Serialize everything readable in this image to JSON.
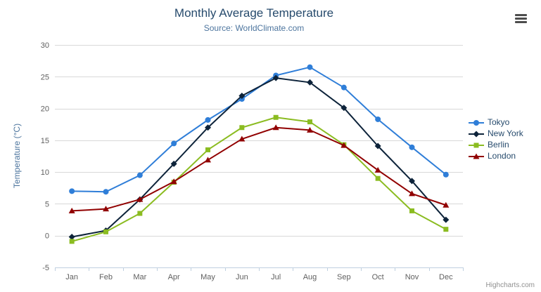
{
  "credit": "Highcharts.com",
  "export_menu": {
    "icon": "hamburger-menu-icon"
  },
  "chart_data": {
    "type": "line",
    "title": "Monthly Average Temperature",
    "subtitle": "Source: WorldClimate.com",
    "xlabel": "",
    "ylabel": "Temperature (°C)",
    "ylim": [
      -5,
      30
    ],
    "ytick_step": 5,
    "grid": true,
    "legend_position": "right",
    "categories": [
      "Jan",
      "Feb",
      "Mar",
      "Apr",
      "May",
      "Jun",
      "Jul",
      "Aug",
      "Sep",
      "Oct",
      "Nov",
      "Dec"
    ],
    "series": [
      {
        "name": "Tokyo",
        "color": "#2f7ed8",
        "marker": "circle",
        "values": [
          7.0,
          6.9,
          9.5,
          14.5,
          18.2,
          21.5,
          25.2,
          26.5,
          23.3,
          18.3,
          13.9,
          9.6
        ]
      },
      {
        "name": "New York",
        "color": "#0d233a",
        "marker": "diamond",
        "values": [
          -0.2,
          0.8,
          5.7,
          11.3,
          17.0,
          22.0,
          24.8,
          24.1,
          20.1,
          14.1,
          8.6,
          2.5
        ]
      },
      {
        "name": "Berlin",
        "color": "#8bbc21",
        "marker": "square",
        "values": [
          -0.9,
          0.6,
          3.5,
          8.4,
          13.5,
          17.0,
          18.6,
          17.9,
          14.3,
          9.0,
          3.9,
          1.0
        ]
      },
      {
        "name": "London",
        "color": "#910000",
        "marker": "triangle",
        "values": [
          3.9,
          4.2,
          5.7,
          8.5,
          11.9,
          15.2,
          17.0,
          16.6,
          14.2,
          10.3,
          6.6,
          4.8
        ]
      }
    ],
    "colors": {
      "title": "#274b6d",
      "subtitle": "#4d759e",
      "axis_label": "#606060",
      "grid_line": "#d8d8d8",
      "axis_line": "#c0d0e0"
    }
  }
}
